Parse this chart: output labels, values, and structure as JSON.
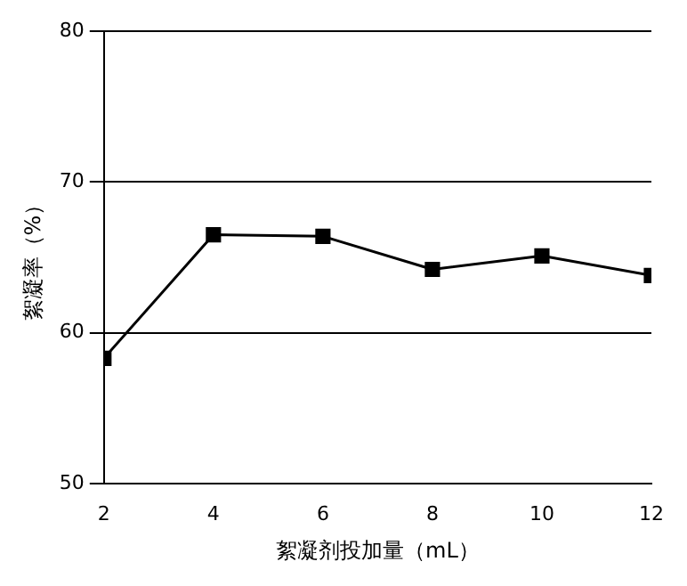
{
  "chart_data": {
    "type": "line",
    "xlabel": "絮凝剂投加量（mL）",
    "ylabel": "絮凝率（%）",
    "x": [
      2,
      4,
      6,
      8,
      10,
      12
    ],
    "series": [
      {
        "color": "#000000",
        "values": [
          58.3,
          66.5,
          66.4,
          64.2,
          65.1,
          63.8
        ]
      }
    ],
    "xlim": [
      2,
      12
    ],
    "xticks": [
      2,
      4,
      6,
      8,
      10,
      12
    ],
    "ylim": [
      50,
      80
    ],
    "yticks": [
      50,
      60,
      70,
      80
    ],
    "grid": "y",
    "legend": false,
    "marker": "square",
    "line_style": "solid"
  }
}
